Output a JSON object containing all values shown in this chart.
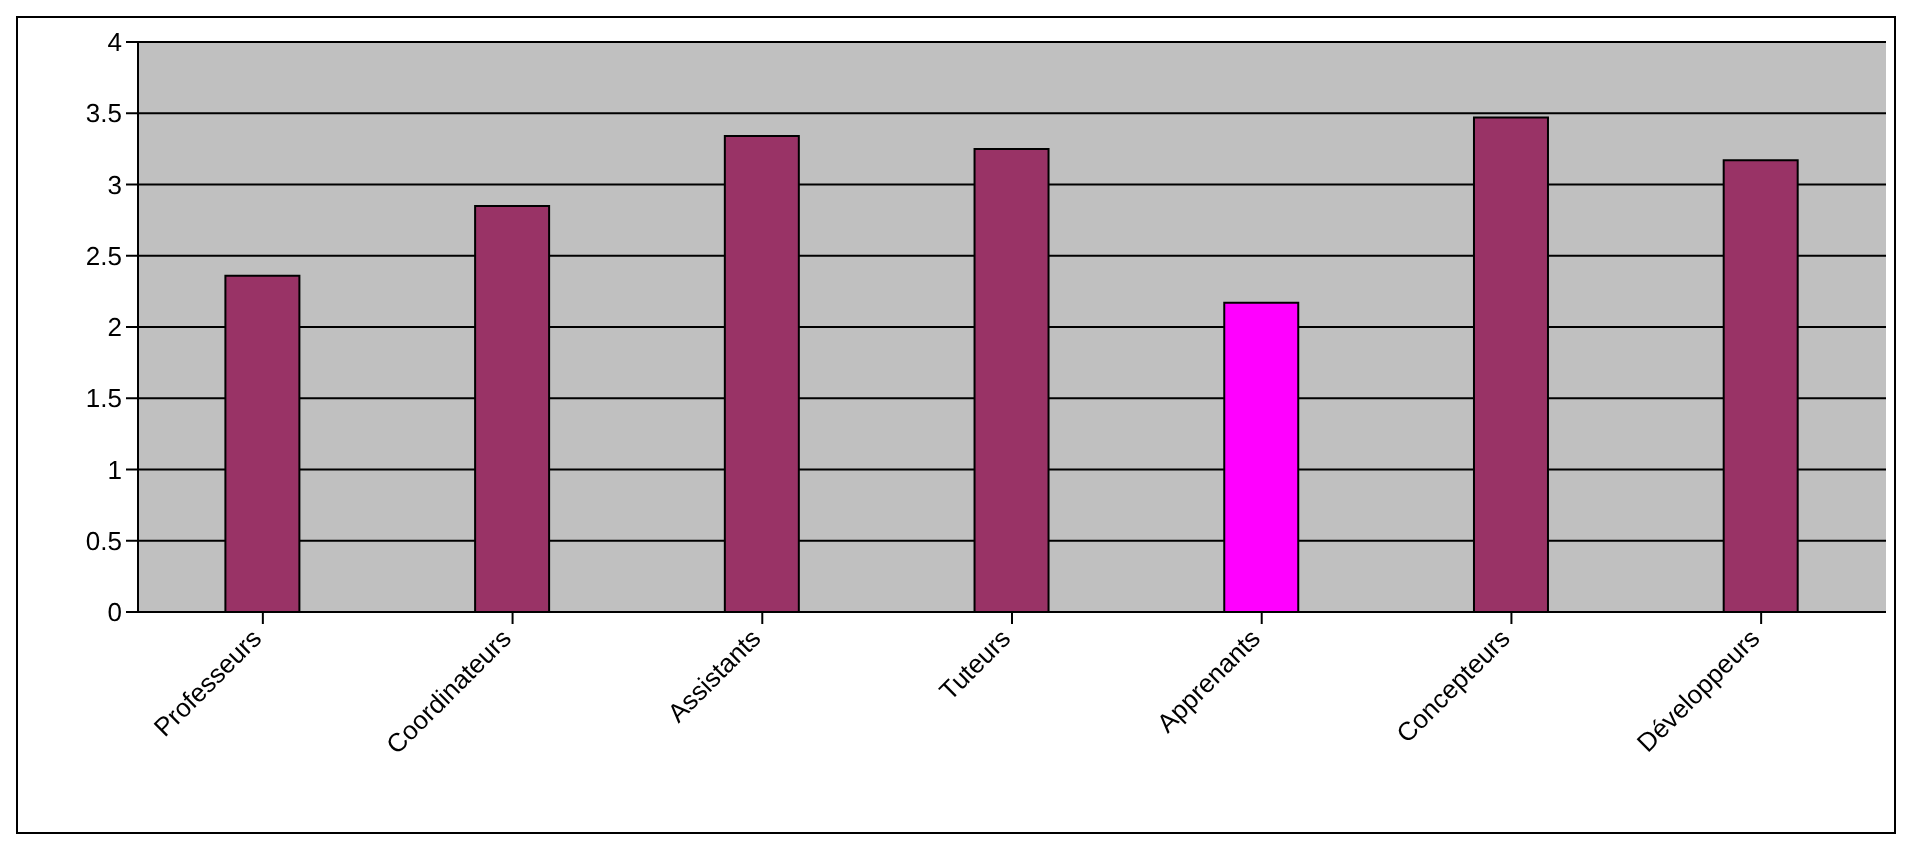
{
  "chart_data": {
    "type": "bar",
    "categories": [
      "Professeurs",
      "Coordinateurs",
      "Assistants",
      "Tuteurs",
      "Apprenants",
      "Concepteurs",
      "Développeurs"
    ],
    "values": [
      2.36,
      2.85,
      3.34,
      3.25,
      2.17,
      3.47,
      3.17
    ],
    "colors": [
      "#993366",
      "#993366",
      "#993366",
      "#993366",
      "#ff00ff",
      "#993366",
      "#993366"
    ],
    "ylim": [
      0,
      4
    ],
    "yticks": [
      0,
      0.5,
      1,
      1.5,
      2,
      2.5,
      3,
      3.5,
      4
    ],
    "grid": "y",
    "legend": false
  }
}
